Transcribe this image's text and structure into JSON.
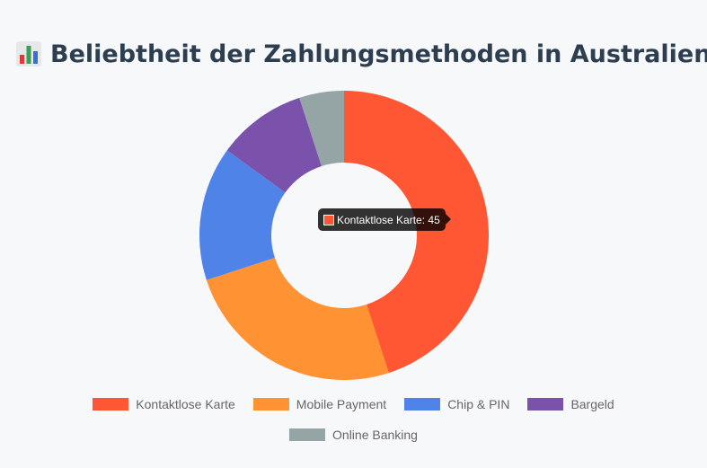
{
  "page": {
    "title": "Beliebtheit der Zahlungsmethoden in Australien",
    "title_icon": "bar-chart-icon"
  },
  "chart_data": {
    "type": "pie",
    "variant": "doughnut",
    "title": "Beliebtheit der Zahlungsmethoden in Australien",
    "categories": [
      "Kontaktlose Karte",
      "Mobile Payment",
      "Chip & PIN",
      "Bargeld",
      "Online Banking"
    ],
    "values": [
      45,
      25,
      15,
      10,
      5
    ],
    "colors": [
      "#ff5733",
      "#ff9233",
      "#5083e8",
      "#7b52ab",
      "#95a5a6"
    ],
    "legend_position": "bottom"
  },
  "tooltip": {
    "label": "Kontaktlose Karte: 45",
    "color": "#ff5733"
  }
}
